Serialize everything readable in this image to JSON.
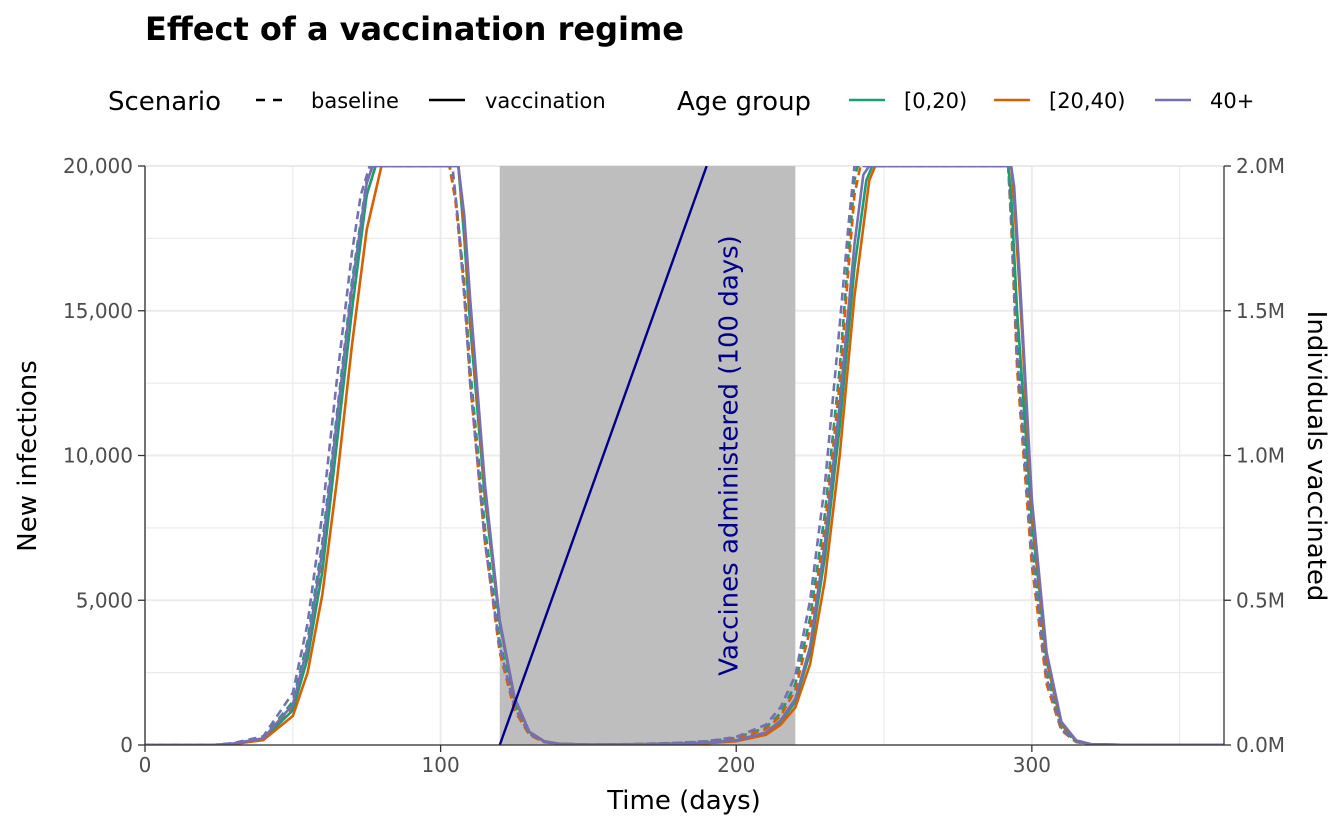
{
  "chart_data": {
    "type": "line",
    "title": "Effect of a vaccination regime",
    "xlabel": "Time (days)",
    "ylabel": "New infections",
    "y2label": "Individuals vaccinated",
    "xlim": [
      0,
      365
    ],
    "ylim": [
      0,
      20000
    ],
    "y2lim": [
      0,
      2000000
    ],
    "x_ticks": [
      0,
      100,
      200,
      300
    ],
    "x_tick_labels": [
      "0",
      "100",
      "200",
      "300"
    ],
    "y_ticks": [
      0,
      5000,
      10000,
      15000,
      20000
    ],
    "y_tick_labels": [
      "0",
      "5,000",
      "10,000",
      "15,000",
      "20,000"
    ],
    "y2_ticks": [
      0,
      500000,
      1000000,
      1500000,
      2000000
    ],
    "y2_tick_labels": [
      "0.0M",
      "0.5M",
      "1.0M",
      "1.5M",
      "2.0M"
    ],
    "grid": true,
    "legend_position": "top",
    "legend": {
      "scenario_title": "Scenario",
      "scenario_items": [
        {
          "label": "baseline",
          "linetype": "dashed"
        },
        {
          "label": "vaccination",
          "linetype": "solid"
        }
      ],
      "age_title": "Age group",
      "age_items": [
        {
          "label": "[0,20)",
          "color": "#1b9e77"
        },
        {
          "label": "[20,40)",
          "color": "#d95f02"
        },
        {
          "label": "40+",
          "color": "#7570b3"
        }
      ]
    },
    "vaccination_window": {
      "start": 120,
      "end": 220,
      "color": "#bebebe"
    },
    "vaccination_line": {
      "x": [
        120,
        190
      ],
      "y": [
        0,
        2000000
      ],
      "color": "#00008b"
    },
    "annotation": {
      "text": "Vaccines administered (100 days)",
      "x": 192,
      "y": 10000
    },
    "series": [
      {
        "scenario": "baseline",
        "group": "[0,20)",
        "color": "#1b9e77",
        "dashed": true,
        "x": [
          0,
          23,
          30,
          40,
          50,
          55,
          60,
          65,
          70,
          75,
          77,
          103,
          105,
          108,
          110,
          115,
          120,
          125,
          130,
          135,
          140,
          150,
          160,
          170,
          180,
          190,
          200,
          210,
          215,
          220,
          225,
          230,
          235,
          238,
          240,
          241,
          292,
          293,
          295,
          300,
          305,
          310,
          315,
          320,
          330,
          340,
          350,
          360,
          365
        ],
        "y": [
          0,
          0,
          60,
          250,
          1500,
          3600,
          7000,
          11500,
          16000,
          19500,
          20000,
          20000,
          19000,
          16000,
          13000,
          7500,
          3600,
          1400,
          400,
          120,
          40,
          10,
          20,
          40,
          70,
          120,
          250,
          600,
          1100,
          2100,
          4400,
          8000,
          13000,
          17000,
          19500,
          20000,
          20000,
          18500,
          14000,
          7000,
          2500,
          600,
          120,
          20,
          5,
          3,
          2,
          1,
          1
        ]
      },
      {
        "scenario": "baseline",
        "group": "[20,40)",
        "color": "#d95f02",
        "dashed": true,
        "x": [
          0,
          23,
          30,
          40,
          50,
          55,
          60,
          65,
          70,
          75,
          78,
          103,
          105,
          108,
          110,
          115,
          120,
          125,
          130,
          135,
          140,
          150,
          160,
          170,
          180,
          190,
          200,
          210,
          215,
          220,
          225,
          230,
          235,
          238,
          240,
          242,
          292,
          293,
          295,
          300,
          305,
          310,
          315,
          320,
          330,
          340,
          350,
          360,
          365
        ],
        "y": [
          0,
          0,
          50,
          220,
          1300,
          3200,
          6500,
          11000,
          15500,
          19000,
          20000,
          20000,
          18800,
          15800,
          12500,
          7000,
          3200,
          1200,
          350,
          100,
          35,
          10,
          20,
          35,
          60,
          100,
          220,
          550,
          1000,
          1900,
          4000,
          7500,
          12500,
          16500,
          19000,
          20000,
          20000,
          18000,
          13000,
          6200,
          2100,
          500,
          100,
          15,
          5,
          3,
          2,
          1,
          1
        ]
      },
      {
        "scenario": "baseline",
        "group": "40+",
        "color": "#7570b3",
        "dashed": true,
        "x": [
          0,
          23,
          30,
          40,
          50,
          55,
          60,
          65,
          70,
          73,
          76,
          104,
          106,
          108,
          110,
          115,
          120,
          125,
          130,
          135,
          140,
          150,
          160,
          170,
          180,
          190,
          200,
          210,
          215,
          220,
          225,
          230,
          235,
          238,
          240,
          292,
          293,
          295,
          300,
          305,
          310,
          315,
          320,
          330,
          340,
          350,
          360,
          365
        ],
        "y": [
          0,
          0,
          70,
          300,
          1800,
          4200,
          8000,
          12700,
          17000,
          19000,
          20000,
          20000,
          18000,
          15500,
          12500,
          7000,
          3400,
          1300,
          380,
          110,
          38,
          10,
          22,
          42,
          75,
          130,
          280,
          700,
          1300,
          2400,
          5000,
          9000,
          14500,
          18000,
          20000,
          20000,
          18300,
          13500,
          6700,
          2300,
          550,
          110,
          18,
          5,
          3,
          2,
          1,
          1
        ]
      },
      {
        "scenario": "vaccination",
        "group": "[0,20)",
        "color": "#1b9e77",
        "dashed": false,
        "x": [
          0,
          23,
          30,
          40,
          50,
          55,
          60,
          65,
          70,
          75,
          78,
          106,
          108,
          110,
          115,
          120,
          125,
          130,
          135,
          140,
          150,
          160,
          170,
          180,
          190,
          200,
          210,
          215,
          220,
          225,
          230,
          235,
          240,
          244,
          246,
          292,
          293,
          295,
          300,
          305,
          310,
          315,
          320,
          330,
          340,
          350,
          360,
          365
        ],
        "y": [
          0,
          0,
          45,
          200,
          1200,
          3000,
          6000,
          10500,
          15000,
          19000,
          20000,
          20000,
          17500,
          14500,
          8500,
          4200,
          1600,
          450,
          130,
          40,
          10,
          15,
          25,
          40,
          70,
          150,
          400,
          800,
          1500,
          3200,
          6500,
          11000,
          16500,
          19500,
          20000,
          20000,
          19000,
          15000,
          7800,
          2900,
          700,
          140,
          25,
          5,
          3,
          2,
          1,
          1
        ]
      },
      {
        "scenario": "vaccination",
        "group": "[20,40)",
        "color": "#d95f02",
        "dashed": false,
        "x": [
          0,
          23,
          30,
          40,
          50,
          55,
          60,
          65,
          70,
          75,
          80,
          106,
          108,
          110,
          115,
          120,
          125,
          130,
          135,
          140,
          150,
          160,
          170,
          180,
          190,
          200,
          210,
          215,
          220,
          225,
          230,
          235,
          240,
          245,
          247,
          293,
          294,
          296,
          300,
          305,
          310,
          315,
          320,
          330,
          340,
          350,
          360,
          365
        ],
        "y": [
          0,
          0,
          35,
          170,
          1000,
          2500,
          5200,
          9200,
          13800,
          17800,
          20000,
          20000,
          18000,
          15000,
          8800,
          4300,
          1600,
          450,
          130,
          40,
          10,
          14,
          22,
          35,
          60,
          130,
          350,
          700,
          1300,
          2800,
          5700,
          10000,
          15500,
          19500,
          20000,
          20000,
          18800,
          15500,
          8200,
          3000,
          750,
          150,
          25,
          5,
          3,
          2,
          1,
          1
        ]
      },
      {
        "scenario": "vaccination",
        "group": "40+",
        "color": "#7570b3",
        "dashed": false,
        "x": [
          0,
          23,
          30,
          40,
          50,
          55,
          60,
          65,
          70,
          75,
          77,
          106,
          108,
          110,
          115,
          120,
          125,
          130,
          135,
          140,
          150,
          160,
          170,
          180,
          190,
          200,
          210,
          215,
          220,
          225,
          230,
          235,
          240,
          243,
          245,
          293,
          294,
          296,
          300,
          305,
          310,
          315,
          320,
          330,
          340,
          350,
          360,
          365
        ],
        "y": [
          0,
          0,
          55,
          230,
          1400,
          3400,
          6700,
          11300,
          15800,
          19400,
          20000,
          20000,
          18300,
          15400,
          9000,
          4300,
          1650,
          460,
          130,
          40,
          10,
          16,
          27,
          45,
          78,
          165,
          430,
          850,
          1600,
          3400,
          7000,
          11800,
          17300,
          19700,
          20000,
          20000,
          19300,
          16000,
          8500,
          3200,
          800,
          160,
          28,
          5,
          3,
          2,
          1,
          1
        ]
      }
    ]
  }
}
